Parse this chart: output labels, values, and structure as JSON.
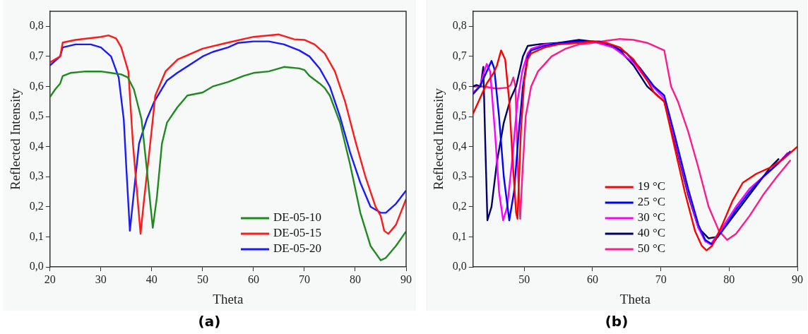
{
  "chart_data": [
    {
      "type": "line",
      "xlabel": "Theta",
      "ylabel": "Reflected Intensity",
      "annotations": [
        "(a)"
      ],
      "xlim": [
        20,
        90
      ],
      "xticks": [
        20,
        30,
        40,
        50,
        60,
        70,
        80,
        90
      ],
      "ylim": [
        0,
        0.85
      ],
      "yticks": [
        {
          "value": 0,
          "label": "0,0"
        },
        {
          "value": 0.1,
          "label": "0,1"
        },
        {
          "value": 0.2,
          "label": "0,2"
        },
        {
          "value": 0.3,
          "label": "0,3"
        },
        {
          "value": 0.4,
          "label": "0,4"
        },
        {
          "value": 0.5,
          "label": "0,5"
        },
        {
          "value": 0.6,
          "label": "0,6"
        },
        {
          "value": 0.7,
          "label": "0,7"
        },
        {
          "value": 0.8,
          "label": "0,8"
        }
      ],
      "grid": false,
      "legend": "bottom right",
      "series": [
        {
          "name": "DE-05-10",
          "color": "#1f8a1f",
          "x": [
            20,
            21,
            22,
            22.5,
            24,
            27,
            30,
            32,
            34,
            35.3,
            36.5,
            38,
            39,
            40.2,
            41,
            42,
            43,
            45,
            47,
            50,
            52,
            55,
            58,
            60,
            63,
            66,
            69,
            70,
            71,
            73,
            74,
            75,
            77,
            79,
            81,
            83,
            85,
            86,
            88,
            90
          ],
          "values": [
            0.565,
            0.59,
            0.61,
            0.635,
            0.645,
            0.65,
            0.65,
            0.645,
            0.64,
            0.63,
            0.59,
            0.49,
            0.33,
            0.13,
            0.23,
            0.41,
            0.48,
            0.53,
            0.57,
            0.58,
            0.6,
            0.615,
            0.635,
            0.645,
            0.65,
            0.665,
            0.66,
            0.655,
            0.635,
            0.61,
            0.595,
            0.57,
            0.48,
            0.34,
            0.18,
            0.07,
            0.022,
            0.03,
            0.07,
            0.118
          ]
        },
        {
          "name": "DE-05-15",
          "color": "#ff1a1a",
          "x": [
            20,
            22,
            22.5,
            25,
            30,
            31.5,
            33,
            34,
            35.4,
            36.3,
            37.3,
            37.8,
            38.4,
            39.7,
            40.7,
            42.7,
            45.1,
            50,
            55,
            60,
            65,
            68,
            70,
            72,
            74,
            76,
            78,
            80,
            82,
            84,
            85,
            85.7,
            86.5,
            88,
            90
          ],
          "values": [
            0.68,
            0.7,
            0.746,
            0.755,
            0.765,
            0.77,
            0.76,
            0.73,
            0.65,
            0.41,
            0.21,
            0.11,
            0.21,
            0.41,
            0.57,
            0.65,
            0.69,
            0.726,
            0.746,
            0.765,
            0.773,
            0.757,
            0.755,
            0.74,
            0.71,
            0.65,
            0.55,
            0.42,
            0.3,
            0.2,
            0.17,
            0.12,
            0.11,
            0.14,
            0.226
          ]
        },
        {
          "name": "DE-05-20",
          "color": "#1a1aff",
          "x": [
            20,
            22,
            22.5,
            25,
            28,
            30,
            32,
            33.5,
            34.5,
            35,
            35.7,
            36.5,
            37.5,
            39,
            40.5,
            43,
            45,
            50,
            52,
            55,
            57,
            60,
            63,
            66,
            69,
            71,
            73,
            75,
            77,
            79,
            81,
            83,
            85,
            86,
            88,
            90
          ],
          "values": [
            0.67,
            0.7,
            0.73,
            0.74,
            0.74,
            0.73,
            0.7,
            0.63,
            0.49,
            0.33,
            0.12,
            0.25,
            0.41,
            0.49,
            0.55,
            0.62,
            0.645,
            0.7,
            0.715,
            0.73,
            0.745,
            0.75,
            0.75,
            0.74,
            0.72,
            0.7,
            0.66,
            0.6,
            0.5,
            0.38,
            0.28,
            0.2,
            0.18,
            0.18,
            0.21,
            0.254
          ]
        }
      ]
    },
    {
      "type": "line",
      "xlabel": "Theta",
      "ylabel": "Reflected Intensity",
      "annotations": [
        "(b)"
      ],
      "xlim": [
        42.5,
        90
      ],
      "xticks": [
        50,
        60,
        70,
        80,
        90
      ],
      "ylim": [
        0,
        0.85
      ],
      "yticks": [
        {
          "value": 0,
          "label": "0,0"
        },
        {
          "value": 0.1,
          "label": "0,1"
        },
        {
          "value": 0.2,
          "label": "0,2"
        },
        {
          "value": 0.3,
          "label": "0,3"
        },
        {
          "value": 0.4,
          "label": "0,4"
        },
        {
          "value": 0.5,
          "label": "0,5"
        },
        {
          "value": 0.6,
          "label": "0,6"
        },
        {
          "value": 0.7,
          "label": "0,7"
        },
        {
          "value": 0.8,
          "label": "0,8"
        }
      ],
      "grid": false,
      "legend": "bottom",
      "series": [
        {
          "name": "19 °C",
          "color": "#ff0000",
          "x": [
            42.5,
            43.5,
            44.5,
            45.5,
            46,
            46.6,
            47.2,
            47.8,
            48.3,
            48.8,
            49,
            49.5,
            50,
            50.5,
            51,
            53,
            55,
            58,
            60,
            62,
            64,
            66,
            68,
            69,
            70.5,
            72,
            73.5,
            75,
            76,
            76.7,
            77.5,
            79,
            80.5,
            82,
            84,
            86,
            88,
            90
          ],
          "values": [
            0.51,
            0.56,
            0.61,
            0.645,
            0.67,
            0.72,
            0.69,
            0.55,
            0.35,
            0.18,
            0.16,
            0.45,
            0.62,
            0.69,
            0.71,
            0.73,
            0.74,
            0.745,
            0.75,
            0.745,
            0.73,
            0.69,
            0.62,
            0.58,
            0.55,
            0.4,
            0.25,
            0.12,
            0.07,
            0.055,
            0.07,
            0.14,
            0.22,
            0.28,
            0.31,
            0.33,
            0.36,
            0.4
          ]
        },
        {
          "name": "25 °C",
          "color": "#0000ff",
          "x": [
            42.5,
            43.5,
            44.5,
            45.2,
            45.6,
            46.3,
            47,
            47.8,
            48.5,
            49.2,
            49.8,
            50.5,
            51,
            53,
            55,
            58,
            61,
            63,
            65,
            67,
            69,
            70.5,
            72,
            74,
            75.5,
            76.5,
            77.5,
            79,
            81,
            83,
            85,
            87,
            89
          ],
          "values": [
            0.575,
            0.6,
            0.65,
            0.685,
            0.66,
            0.5,
            0.3,
            0.155,
            0.25,
            0.45,
            0.6,
            0.7,
            0.72,
            0.735,
            0.745,
            0.75,
            0.75,
            0.735,
            0.71,
            0.66,
            0.6,
            0.57,
            0.44,
            0.26,
            0.14,
            0.09,
            0.075,
            0.12,
            0.19,
            0.25,
            0.3,
            0.34,
            0.385
          ]
        },
        {
          "name": "30 °C",
          "color": "#ff00ff",
          "x": [
            42.5,
            43.5,
            44,
            44.5,
            45,
            45.7,
            46.3,
            46.9,
            47.5,
            48.2,
            49,
            49.7,
            50.5,
            51,
            53,
            56,
            60,
            63,
            66,
            68,
            70.5,
            72,
            74,
            75.5,
            76.5,
            77.3,
            79,
            81,
            83,
            85,
            87,
            88.6
          ],
          "values": [
            0.58,
            0.6,
            0.64,
            0.675,
            0.65,
            0.45,
            0.25,
            0.155,
            0.2,
            0.35,
            0.55,
            0.65,
            0.71,
            0.725,
            0.74,
            0.745,
            0.75,
            0.73,
            0.68,
            0.62,
            0.56,
            0.43,
            0.25,
            0.13,
            0.085,
            0.075,
            0.13,
            0.2,
            0.26,
            0.3,
            0.34,
            0.38
          ]
        },
        {
          "name": "40 °C",
          "color": "#000066",
          "x": [
            42.5,
            43,
            43.6,
            44,
            44.3,
            44.6,
            45.2,
            46,
            47,
            48,
            48.8,
            49.3,
            49.8,
            50.5,
            52,
            55,
            58,
            60,
            62,
            64,
            66,
            68,
            70.5,
            72,
            74,
            75.5,
            77,
            78.3,
            80,
            82,
            84,
            86,
            87.3
          ],
          "values": [
            0.6,
            0.605,
            0.6,
            0.665,
            0.4,
            0.155,
            0.2,
            0.35,
            0.48,
            0.56,
            0.6,
            0.65,
            0.7,
            0.735,
            0.74,
            0.745,
            0.755,
            0.75,
            0.74,
            0.72,
            0.67,
            0.6,
            0.55,
            0.42,
            0.24,
            0.13,
            0.095,
            0.1,
            0.15,
            0.21,
            0.27,
            0.33,
            0.36
          ]
        },
        {
          "name": "50 °C",
          "color": "#ff1a8c",
          "x": [
            42.5,
            44,
            46,
            47.5,
            48,
            48.4,
            48.7,
            49.1,
            49.4,
            49.7,
            50.2,
            51,
            52,
            54,
            56,
            58,
            60,
            62,
            64,
            66,
            68,
            70.5,
            71.5,
            72.5,
            74,
            75.5,
            77,
            78.5,
            79.7,
            81,
            83,
            85,
            87,
            89
          ],
          "values": [
            0.6,
            0.6,
            0.593,
            0.596,
            0.605,
            0.63,
            0.6,
            0.3,
            0.16,
            0.3,
            0.5,
            0.6,
            0.65,
            0.7,
            0.725,
            0.74,
            0.745,
            0.752,
            0.758,
            0.755,
            0.745,
            0.72,
            0.6,
            0.55,
            0.45,
            0.33,
            0.2,
            0.12,
            0.09,
            0.11,
            0.17,
            0.24,
            0.3,
            0.355
          ]
        }
      ]
    }
  ]
}
